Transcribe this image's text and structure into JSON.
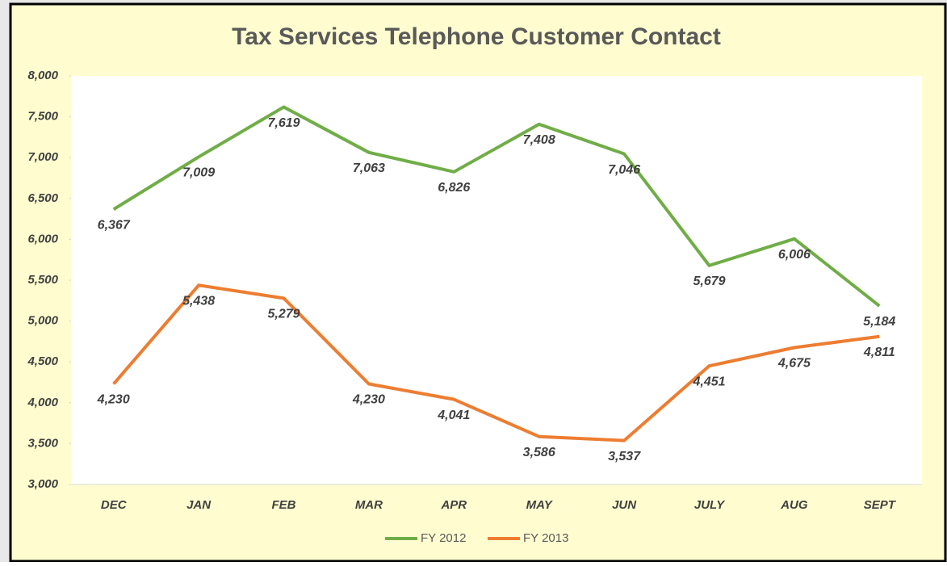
{
  "chart_data": {
    "type": "line",
    "title": "Tax Services Telephone Customer Contact",
    "categories": [
      "DEC",
      "JAN",
      "FEB",
      "MAR",
      "APR",
      "MAY",
      "JUN",
      "JULY",
      "AUG",
      "SEPT"
    ],
    "series": [
      {
        "name": "FY 2012",
        "color": "#70ad47",
        "values": [
          6367,
          7009,
          7619,
          7063,
          6826,
          7408,
          7046,
          5679,
          6006,
          5184
        ],
        "value_labels": [
          "6,367",
          "7,009",
          "7,619",
          "7,063",
          "6,826",
          "7,408",
          "7,046",
          "5,679",
          "6,006",
          "5,184"
        ]
      },
      {
        "name": "FY 2013",
        "color": "#ed7d31",
        "values": [
          4230,
          5438,
          5279,
          4230,
          4041,
          3586,
          3537,
          4451,
          4675,
          4811
        ],
        "value_labels": [
          "4,230",
          "5,438",
          "5,279",
          "4,230",
          "4,041",
          "3,586",
          "3,537",
          "4,451",
          "4,675",
          "4,811"
        ]
      }
    ],
    "ylim": [
      3000,
      8000
    ],
    "yticks": [
      {
        "value": 3000,
        "label": "3,000"
      },
      {
        "value": 3500,
        "label": "3,500"
      },
      {
        "value": 4000,
        "label": "4,000"
      },
      {
        "value": 4500,
        "label": "4,500"
      },
      {
        "value": 5000,
        "label": "5,000"
      },
      {
        "value": 5500,
        "label": "5,500"
      },
      {
        "value": 6000,
        "label": "6,000"
      },
      {
        "value": 6500,
        "label": "6,500"
      },
      {
        "value": 7000,
        "label": "7,000"
      },
      {
        "value": 7500,
        "label": "7,500"
      },
      {
        "value": 8000,
        "label": "8,000"
      }
    ],
    "legend": "bottom"
  }
}
